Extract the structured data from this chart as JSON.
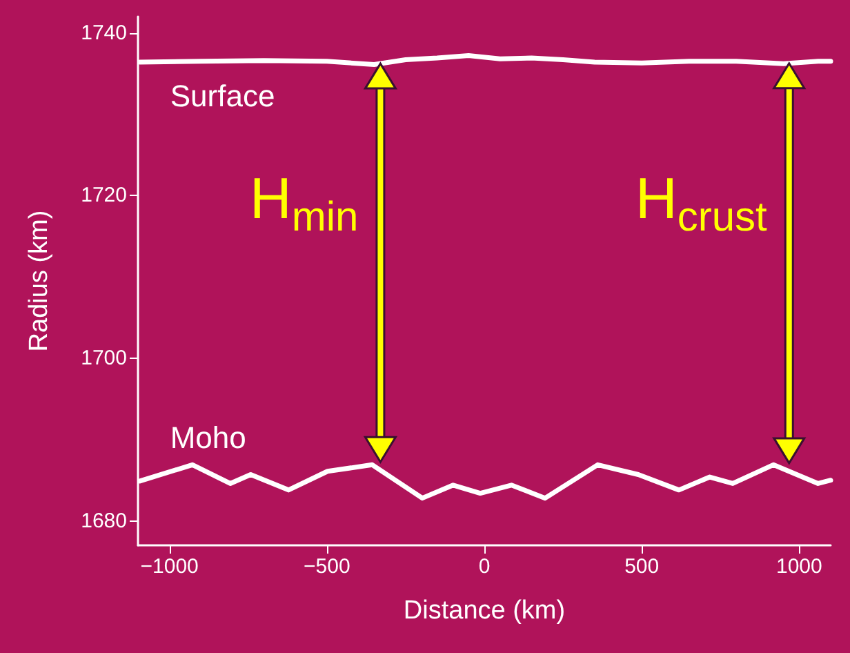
{
  "chart_data": {
    "type": "line",
    "xlabel": "Distance (km)",
    "ylabel": "Radius (km)",
    "xlim": [
      -1100,
      1100
    ],
    "xticks": [
      -1000,
      -500,
      0,
      500,
      1000
    ],
    "ylim": [
      1677,
      1742
    ],
    "yticks": [
      1680,
      1700,
      1720,
      1740
    ],
    "grid": false,
    "legend": false,
    "marker": "none",
    "line_style": "solid",
    "series": [
      {
        "name": "Surface",
        "color": "#ffffff",
        "x": [
          -1094,
          -900,
          -700,
          -500,
          -350,
          -250,
          -150,
          -50,
          50,
          150,
          250,
          350,
          500,
          650,
          800,
          950,
          1060,
          1100
        ],
        "values": [
          1736.4,
          1736.5,
          1736.6,
          1736.5,
          1736.1,
          1736.7,
          1736.9,
          1737.2,
          1736.8,
          1736.9,
          1736.7,
          1736.4,
          1736.3,
          1736.5,
          1736.5,
          1736.2,
          1736.5,
          1736.5
        ]
      },
      {
        "name": "Moho",
        "color": "#ffffff",
        "x": [
          -1094,
          -927,
          -807,
          -742,
          -622,
          -498,
          -356,
          -197,
          -99,
          -13,
          86,
          193,
          360,
          489,
          618,
          716,
          789,
          918,
          1060,
          1100
        ],
        "values": [
          1684.9,
          1686.9,
          1684.6,
          1685.7,
          1683.8,
          1686.1,
          1686.9,
          1682.8,
          1684.4,
          1683.4,
          1684.4,
          1682.8,
          1686.9,
          1685.7,
          1683.8,
          1685.4,
          1684.6,
          1686.9,
          1684.6,
          1685.0
        ]
      }
    ],
    "annotations": [
      "H$_{min}$",
      "H$_{crust}$"
    ]
  }
}
